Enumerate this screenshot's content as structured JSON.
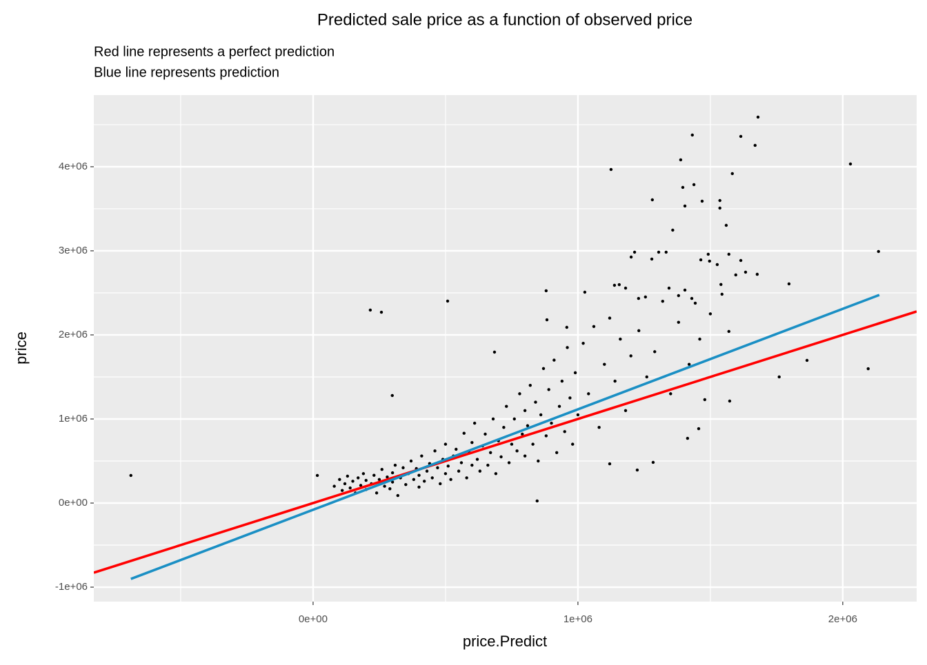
{
  "chart_data": {
    "type": "scatter",
    "title": "Predicted sale price as a function of observed price",
    "subtitle": [
      "Red line represents a perfect prediction",
      "Blue line represents prediction"
    ],
    "x_label": "price.Predict",
    "y_label": "price",
    "xlim": [
      -828000,
      2279000
    ],
    "ylim": [
      -1172000,
      4852000
    ],
    "xticks": [
      {
        "value": 0,
        "label": "0e+00"
      },
      {
        "value": 1000000,
        "label": "1e+06"
      },
      {
        "value": 2000000,
        "label": "2e+06"
      }
    ],
    "yticks": [
      {
        "value": -1000000,
        "label": "-1e+06"
      },
      {
        "value": 0,
        "label": "0e+00"
      },
      {
        "value": 1000000,
        "label": "1e+06"
      },
      {
        "value": 2000000,
        "label": "2e+06"
      },
      {
        "value": 3000000,
        "label": "3e+06"
      },
      {
        "value": 4000000,
        "label": "4e+06"
      }
    ],
    "grid": true,
    "minor_grid": true,
    "series": [
      {
        "type": "scatter",
        "color": "#000000",
        "x": [
          -688000,
          216000,
          258000,
          299000,
          508000,
          1125000,
          1432000,
          1680000,
          1615000,
          1669000,
          2029000,
          2135000,
          1388000,
          1396000,
          1438000,
          1281000,
          1404000,
          1469000,
          1536000,
          1583000,
          1560000,
          1536000,
          1358000,
          1214000,
          1201000,
          1279000,
          1333000,
          1305000,
          1492000,
          1464000,
          1497000,
          1526000,
          1570000,
          1615000,
          1596000,
          1633000,
          1677000,
          1797000,
          880000,
          1026000,
          1138000,
          1156000,
          1180000,
          1229000,
          1255000,
          1344000,
          1380000,
          1430000,
          1404000,
          1443000,
          1544000,
          1570000,
          1760000,
          1865000,
          2096000,
          1573000,
          1479000,
          1456000,
          1414000,
          1284000,
          1224000,
          1120000,
          846000,
          16000,
          685000,
          883000,
          958000,
          80000,
          100000,
          110000,
          120000,
          130000,
          140000,
          150000,
          160000,
          170000,
          180000,
          190000,
          200000,
          200000,
          220000,
          230000,
          240000,
          250000,
          260000,
          270000,
          280000,
          290000,
          300000,
          300000,
          310000,
          320000,
          330000,
          340000,
          350000,
          360000,
          370000,
          380000,
          390000,
          400000,
          400000,
          410000,
          420000,
          430000,
          440000,
          450000,
          460000,
          470000,
          480000,
          490000,
          500000,
          500000,
          510000,
          520000,
          530000,
          540000,
          550000,
          560000,
          570000,
          580000,
          590000,
          600000,
          600000,
          610000,
          620000,
          630000,
          640000,
          650000,
          660000,
          670000,
          680000,
          690000,
          700000,
          710000,
          720000,
          730000,
          740000,
          750000,
          760000,
          770000,
          780000,
          790000,
          800000,
          800000,
          810000,
          820000,
          830000,
          840000,
          850000,
          860000,
          870000,
          880000,
          890000,
          900000,
          910000,
          920000,
          930000,
          940000,
          950000,
          960000,
          970000,
          980000,
          990000,
          1000000,
          1020000,
          1040000,
          1060000,
          1080000,
          1100000,
          1120000,
          1140000,
          1160000,
          1180000,
          1200000,
          1230000,
          1260000,
          1290000,
          1320000,
          1350000,
          1380000,
          1420000,
          1460000,
          1500000,
          1540000
        ],
        "values": [
          328000,
          2295000,
          2270000,
          1279000,
          2402000,
          3967000,
          4377000,
          4590000,
          4361000,
          4254000,
          4033000,
          2992000,
          4082000,
          3754000,
          3787000,
          3607000,
          3533000,
          3590000,
          3598000,
          3918000,
          3303000,
          3508000,
          3246000,
          2984000,
          2926000,
          2902000,
          2984000,
          2984000,
          2959000,
          2893000,
          2877000,
          2836000,
          2959000,
          2885000,
          2713000,
          2746000,
          2721000,
          2607000,
          2525000,
          2508000,
          2590000,
          2598000,
          2557000,
          2434000,
          2451000,
          2557000,
          2467000,
          2434000,
          2533000,
          2377000,
          2484000,
          2041000,
          1500000,
          1697000,
          1598000,
          1213000,
          1230000,
          885000,
          770000,
          484000,
          393000,
          467000,
          25000,
          328000,
          1795000,
          2180000,
          2090000,
          200000,
          280000,
          150000,
          230000,
          320000,
          180000,
          260000,
          120000,
          300000,
          210000,
          350000,
          160000,
          270000,
          230000,
          330000,
          120000,
          280000,
          400000,
          200000,
          310000,
          170000,
          360000,
          250000,
          450000,
          90000,
          300000,
          420000,
          220000,
          350000,
          500000,
          280000,
          410000,
          190000,
          330000,
          560000,
          260000,
          380000,
          470000,
          300000,
          620000,
          420000,
          230000,
          520000,
          350000,
          700000,
          440000,
          280000,
          560000,
          640000,
          380000,
          480000,
          830000,
          300000,
          600000,
          450000,
          720000,
          950000,
          520000,
          380000,
          680000,
          820000,
          450000,
          600000,
          1000000,
          350000,
          740000,
          550000,
          900000,
          1150000,
          480000,
          700000,
          1000000,
          620000,
          1300000,
          820000,
          560000,
          1100000,
          920000,
          1400000,
          700000,
          1200000,
          500000,
          1050000,
          1600000,
          800000,
          1350000,
          950000,
          1700000,
          600000,
          1150000,
          1450000,
          850000,
          1850000,
          1250000,
          700000,
          1550000,
          1050000,
          1900000,
          1300000,
          2100000,
          900000,
          1650000,
          2200000,
          1450000,
          1950000,
          1100000,
          1750000,
          2050000,
          1500000,
          1800000,
          2400000,
          1300000,
          2150000,
          1650000,
          1950000,
          2250000,
          2600000
        ]
      },
      {
        "type": "line",
        "color": "#ff0000",
        "x": [
          -828000,
          2279000
        ],
        "values": [
          -828000,
          2279000
        ]
      },
      {
        "type": "line",
        "color": "#1a8fc4",
        "x": [
          -688000,
          2138000
        ],
        "values": [
          -902000,
          2475000
        ]
      }
    ]
  }
}
